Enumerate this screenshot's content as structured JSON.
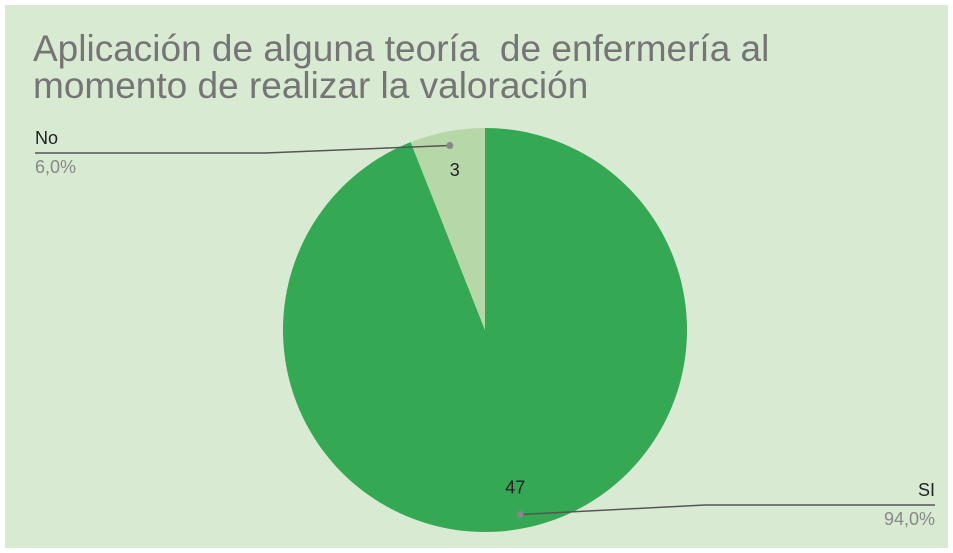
{
  "chart_data": {
    "type": "pie",
    "title": "Aplicación de alguna teoría  de enfermería al momento de realizar la valoración",
    "categories": [
      "SI",
      "No"
    ],
    "values": [
      47,
      3
    ],
    "percentages": [
      94.0,
      6.0
    ],
    "percentage_labels": [
      "94,0%",
      "6,0%"
    ],
    "colors": [
      "#34a853",
      "#b6d7a8"
    ]
  }
}
